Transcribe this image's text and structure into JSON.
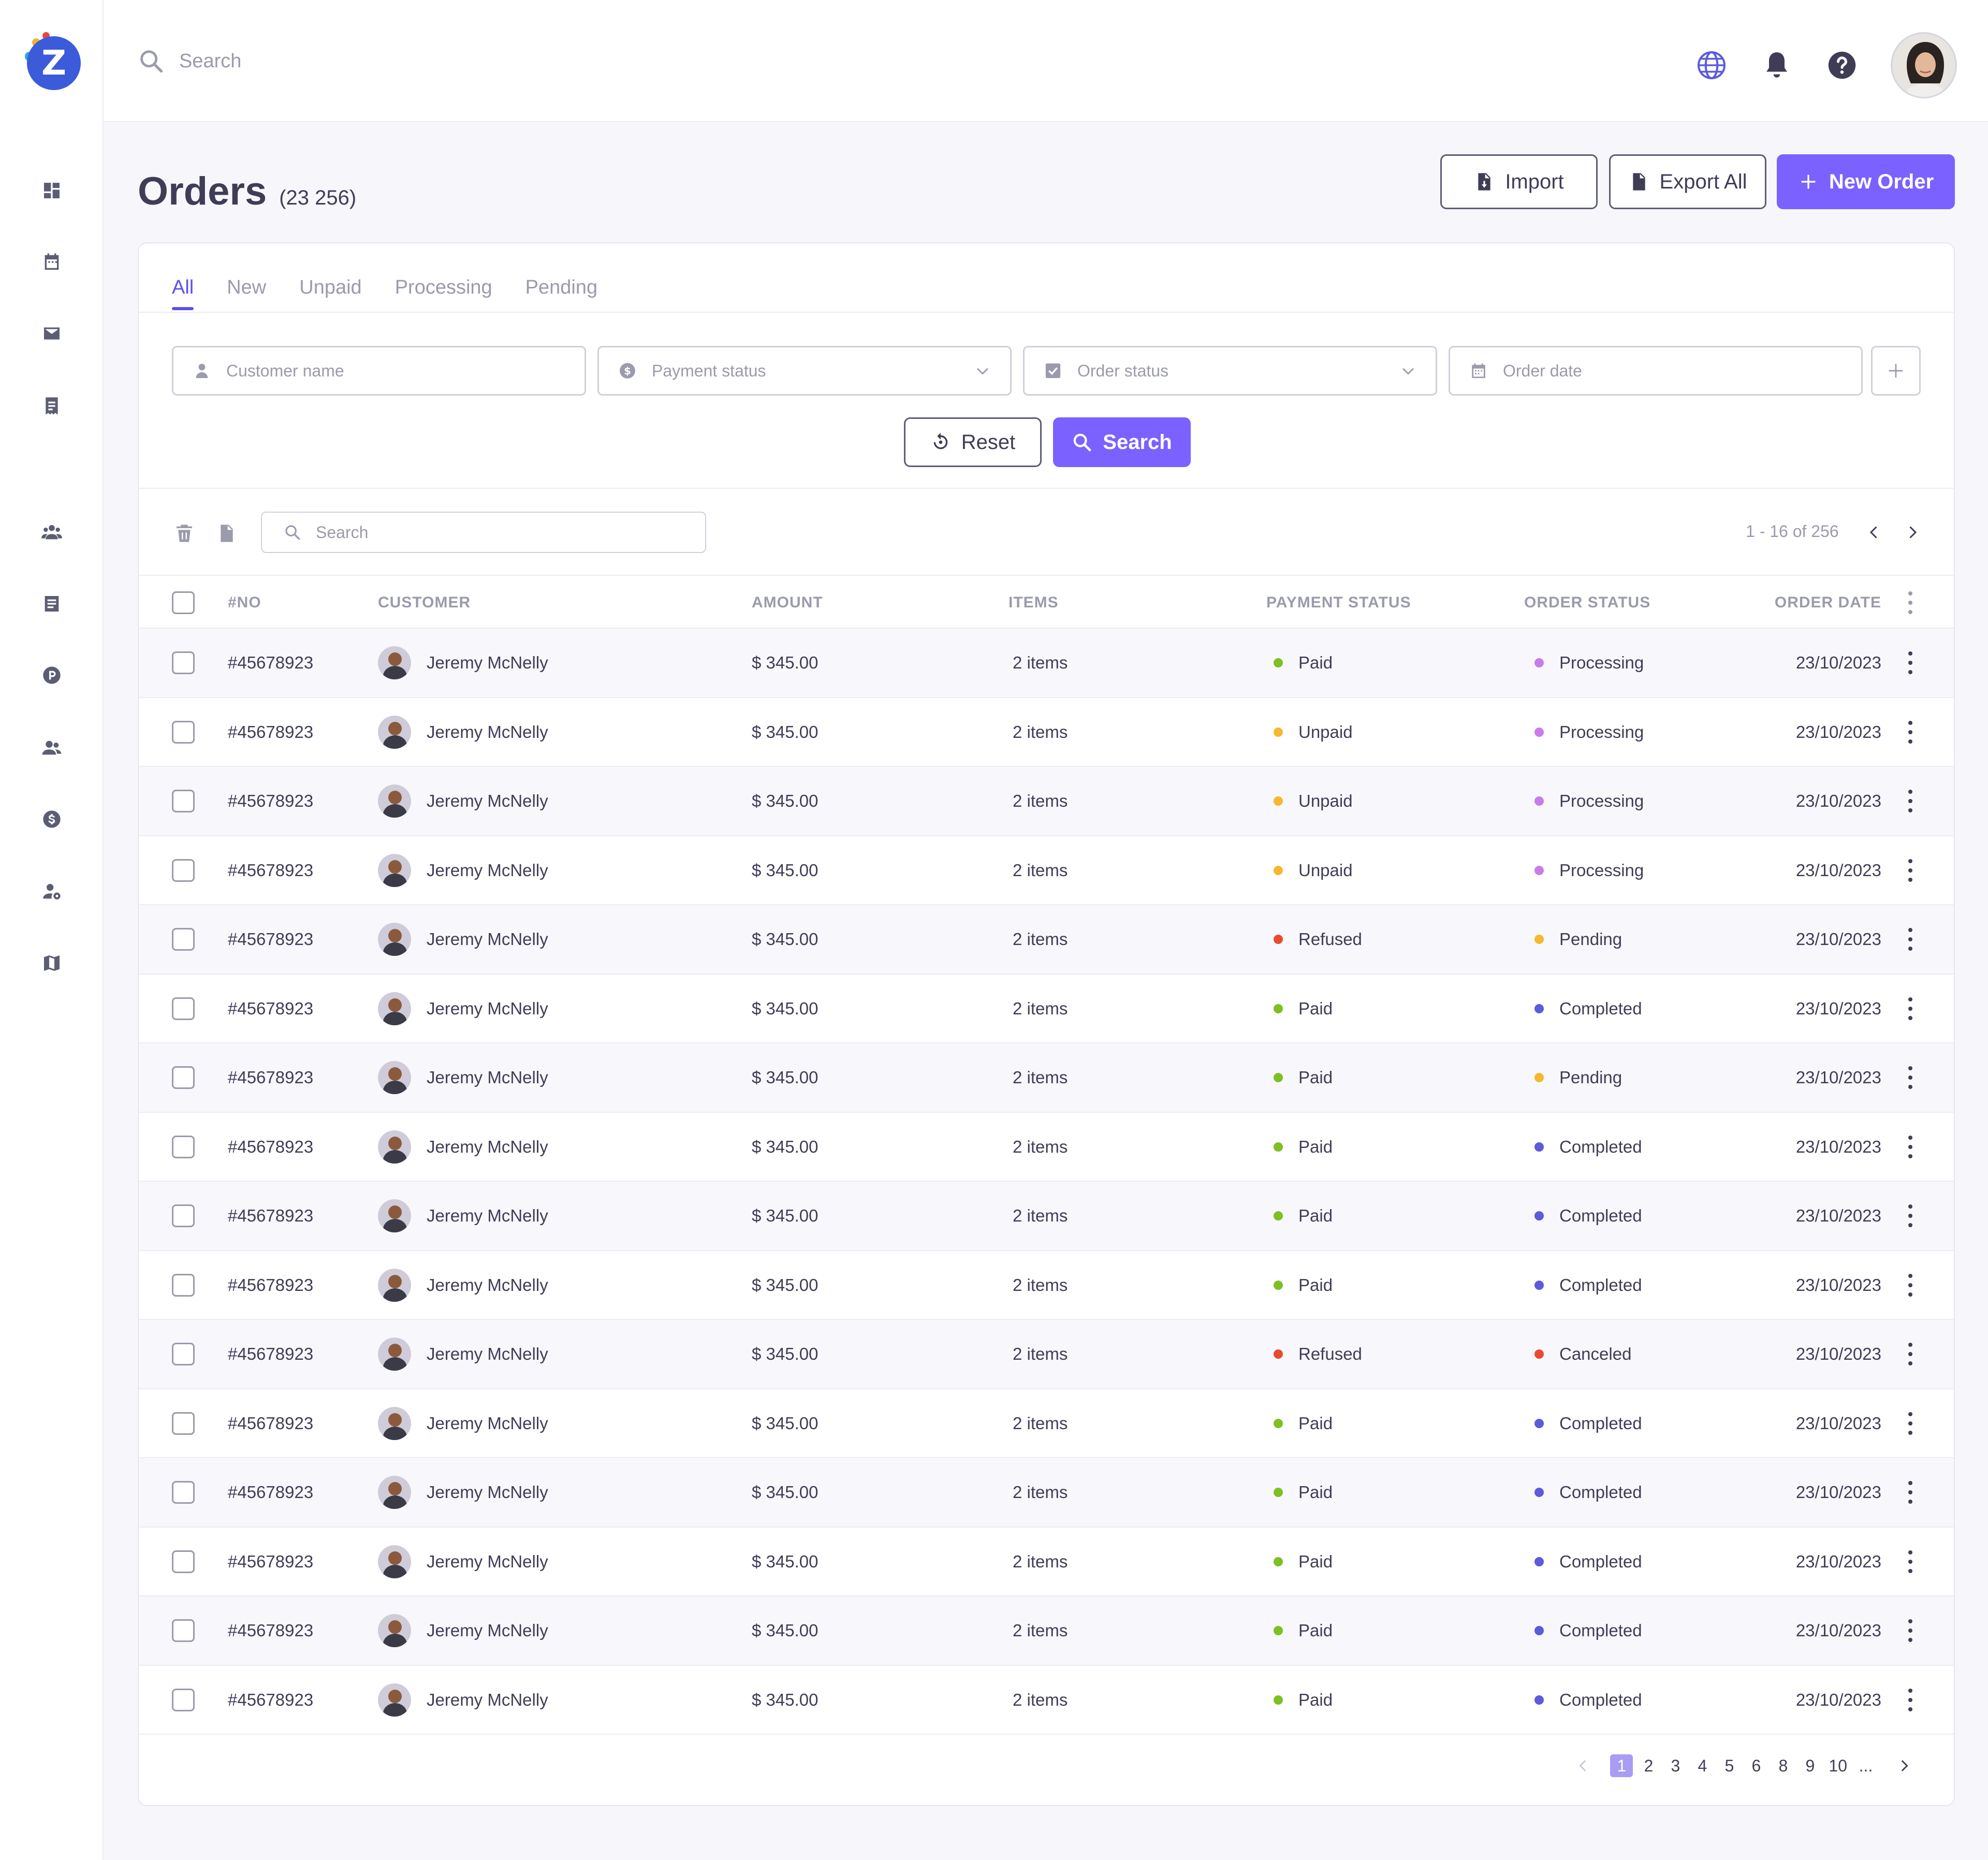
{
  "topbar": {
    "search_placeholder": "Search",
    "icons": [
      "globe-icon",
      "bell-icon",
      "help-icon"
    ]
  },
  "sidebar": {
    "logo_letter": "Z",
    "items": [
      "dashboard-icon",
      "calendar-icon",
      "mail-icon",
      "invoice-icon",
      "team-icon",
      "document-icon",
      "parking-icon",
      "users-icon",
      "dollar-icon",
      "user-settings-icon",
      "map-icon"
    ]
  },
  "header": {
    "title": "Orders",
    "count": "(23 256)",
    "import_label": "Import",
    "export_label": "Export All",
    "new_order_label": "New Order"
  },
  "tabs": [
    "All",
    "New",
    "Unpaid",
    "Processing",
    "Pending"
  ],
  "filters": {
    "customer_name": "Customer name",
    "payment_status": "Payment status",
    "order_status": "Order status",
    "order_date": "Order date",
    "reset_label": "Reset",
    "search_label": "Search"
  },
  "toolbar": {
    "search_placeholder": "Search",
    "range": "1 - 16 of 256"
  },
  "table": {
    "headers": {
      "no": "#NO",
      "customer": "CUSTOMER",
      "amount": "AMOUNT",
      "items": "ITEMS",
      "payment_status": "PAYMENT STATUS",
      "order_status": "ORDER STATUS",
      "order_date": "ORDER DATE"
    },
    "rows": [
      {
        "no": "#45678923",
        "customer": "Jeremy McNelly",
        "amount": "$ 345.00",
        "items": "2 items",
        "payment": "Paid",
        "order": "Processing",
        "date": "23/10/2023"
      },
      {
        "no": "#45678923",
        "customer": "Jeremy McNelly",
        "amount": "$ 345.00",
        "items": "2 items",
        "payment": "Unpaid",
        "order": "Processing",
        "date": "23/10/2023"
      },
      {
        "no": "#45678923",
        "customer": "Jeremy McNelly",
        "amount": "$ 345.00",
        "items": "2 items",
        "payment": "Unpaid",
        "order": "Processing",
        "date": "23/10/2023"
      },
      {
        "no": "#45678923",
        "customer": "Jeremy McNelly",
        "amount": "$ 345.00",
        "items": "2 items",
        "payment": "Unpaid",
        "order": "Processing",
        "date": "23/10/2023"
      },
      {
        "no": "#45678923",
        "customer": "Jeremy McNelly",
        "amount": "$ 345.00",
        "items": "2 items",
        "payment": "Refused",
        "order": "Pending",
        "date": "23/10/2023"
      },
      {
        "no": "#45678923",
        "customer": "Jeremy McNelly",
        "amount": "$ 345.00",
        "items": "2 items",
        "payment": "Paid",
        "order": "Completed",
        "date": "23/10/2023"
      },
      {
        "no": "#45678923",
        "customer": "Jeremy McNelly",
        "amount": "$ 345.00",
        "items": "2 items",
        "payment": "Paid",
        "order": "Pending",
        "date": "23/10/2023"
      },
      {
        "no": "#45678923",
        "customer": "Jeremy McNelly",
        "amount": "$ 345.00",
        "items": "2 items",
        "payment": "Paid",
        "order": "Completed",
        "date": "23/10/2023"
      },
      {
        "no": "#45678923",
        "customer": "Jeremy McNelly",
        "amount": "$ 345.00",
        "items": "2 items",
        "payment": "Paid",
        "order": "Completed",
        "date": "23/10/2023"
      },
      {
        "no": "#45678923",
        "customer": "Jeremy McNelly",
        "amount": "$ 345.00",
        "items": "2 items",
        "payment": "Paid",
        "order": "Completed",
        "date": "23/10/2023"
      },
      {
        "no": "#45678923",
        "customer": "Jeremy McNelly",
        "amount": "$ 345.00",
        "items": "2 items",
        "payment": "Refused",
        "order": "Canceled",
        "date": "23/10/2023"
      },
      {
        "no": "#45678923",
        "customer": "Jeremy McNelly",
        "amount": "$ 345.00",
        "items": "2 items",
        "payment": "Paid",
        "order": "Completed",
        "date": "23/10/2023"
      },
      {
        "no": "#45678923",
        "customer": "Jeremy McNelly",
        "amount": "$ 345.00",
        "items": "2 items",
        "payment": "Paid",
        "order": "Completed",
        "date": "23/10/2023"
      },
      {
        "no": "#45678923",
        "customer": "Jeremy McNelly",
        "amount": "$ 345.00",
        "items": "2 items",
        "payment": "Paid",
        "order": "Completed",
        "date": "23/10/2023"
      },
      {
        "no": "#45678923",
        "customer": "Jeremy McNelly",
        "amount": "$ 345.00",
        "items": "2 items",
        "payment": "Paid",
        "order": "Completed",
        "date": "23/10/2023"
      },
      {
        "no": "#45678923",
        "customer": "Jeremy McNelly",
        "amount": "$ 345.00",
        "items": "2 items",
        "payment": "Paid",
        "order": "Completed",
        "date": "23/10/2023"
      }
    ]
  },
  "status_colors": {
    "Paid": "#7cc022",
    "Unpaid": "#f5b82e",
    "Refused": "#ea4a30",
    "Processing": "#c77de8",
    "Pending": "#f5b82e",
    "Completed": "#5b5bdb",
    "Canceled": "#ea4a30"
  },
  "pagination": {
    "pages": [
      "1",
      "2",
      "3",
      "4",
      "5",
      "6",
      "8",
      "9",
      "10",
      "..."
    ],
    "current": "1"
  },
  "colors": {
    "accent": "#7b61ff",
    "tab_active": "#5b4ff0"
  }
}
